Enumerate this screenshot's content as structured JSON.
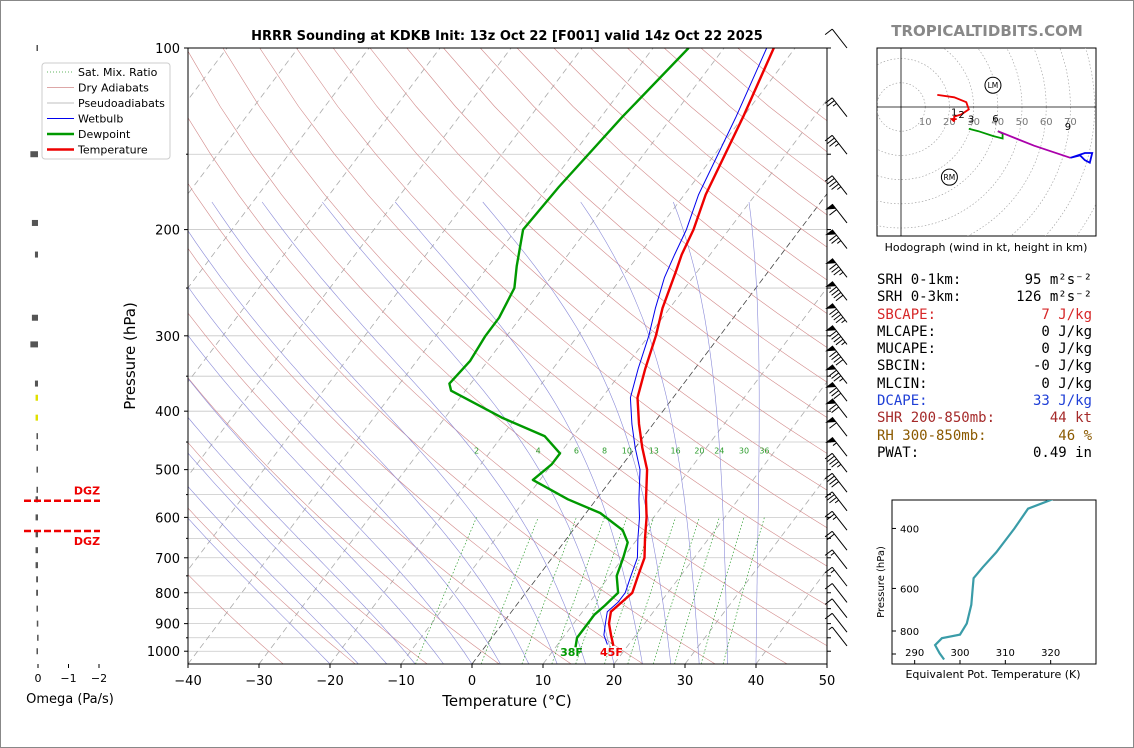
{
  "chart_data": {
    "type": "line",
    "title": "HRRR Sounding at KDKB Init: 13z Oct 22 [F001] valid 14z Oct 22 2025",
    "watermark": "TROPICALTIDBITS.COM",
    "xlabel": "Temperature (°C)",
    "ylabel": "Pressure (hPa)",
    "xlim": [
      -40,
      50
    ],
    "ylim": [
      1050,
      100
    ],
    "xticks": [
      -40,
      -30,
      -20,
      -10,
      0,
      10,
      20,
      30,
      40,
      50
    ],
    "xtick_labels": [
      "−40",
      "−30",
      "−20",
      "−10",
      "0",
      "10",
      "20",
      "30",
      "40",
      "50"
    ],
    "yticks": [
      100,
      200,
      300,
      400,
      500,
      600,
      700,
      800,
      900,
      1000
    ],
    "ytick_labels": [
      "100",
      "200",
      "300",
      "400",
      "500",
      "600",
      "700",
      "800",
      "900",
      "1000"
    ],
    "legend": [
      "Sat. Mix. Ratio",
      "Dry Adiabats",
      "Pseudoadiabats",
      "Wetbulb",
      "Dewpoint",
      "Temperature"
    ],
    "mixing_ratio_labels": [
      "2",
      "4",
      "6",
      "8",
      "10",
      "13",
      "16",
      "20",
      "24",
      "30",
      "36"
    ],
    "surface_labels": {
      "dewpoint": "38F",
      "temperature": "45F"
    },
    "colors": {
      "temperature": "#ee0000",
      "dewpoint": "#009900",
      "wetbulb": "#0000ee",
      "mixing": "#2e9d2e"
    },
    "series": [
      {
        "name": "Temperature",
        "points": [
          [
            -23,
            100
          ],
          [
            -20,
            130
          ],
          [
            -17,
            175
          ],
          [
            -15,
            200
          ],
          [
            -14,
            220
          ],
          [
            -13,
            235
          ],
          [
            -11,
            270
          ],
          [
            -9,
            300
          ],
          [
            -7,
            340
          ],
          [
            -5,
            380
          ],
          [
            -2,
            420
          ],
          [
            1,
            460
          ],
          [
            4,
            500
          ],
          [
            7,
            560
          ],
          [
            9,
            600
          ],
          [
            11,
            650
          ],
          [
            13,
            700
          ],
          [
            14,
            750
          ],
          [
            15,
            800
          ],
          [
            14.5,
            830
          ],
          [
            14,
            860
          ],
          [
            15,
            900
          ],
          [
            16.5,
            940
          ],
          [
            18,
            980
          ]
        ]
      },
      {
        "name": "Dewpoint",
        "points": [
          [
            -35,
            100
          ],
          [
            -37,
            130
          ],
          [
            -38.5,
            170
          ],
          [
            -39,
            200
          ],
          [
            -36,
            230
          ],
          [
            -34,
            250
          ],
          [
            -33,
            280
          ],
          [
            -33,
            300
          ],
          [
            -32.5,
            330
          ],
          [
            -33,
            360
          ],
          [
            -32,
            370
          ],
          [
            -22,
            410
          ],
          [
            -14,
            440
          ],
          [
            -10,
            470
          ],
          [
            -10,
            490
          ],
          [
            -11,
            520
          ],
          [
            -4,
            560
          ],
          [
            2,
            590
          ],
          [
            7,
            630
          ],
          [
            9,
            660
          ],
          [
            10,
            700
          ],
          [
            11,
            750
          ],
          [
            13,
            800
          ],
          [
            12.5,
            840
          ],
          [
            12,
            870
          ],
          [
            12,
            900
          ],
          [
            12,
            950
          ],
          [
            12.8,
            985
          ]
        ]
      },
      {
        "name": "Wetbulb",
        "points": [
          [
            -24,
            100
          ],
          [
            -21,
            130
          ],
          [
            -18,
            175
          ],
          [
            -16,
            200
          ],
          [
            -15,
            220
          ],
          [
            -14,
            240
          ],
          [
            -12,
            270
          ],
          [
            -10,
            300
          ],
          [
            -8,
            340
          ],
          [
            -6,
            380
          ],
          [
            -3,
            420
          ],
          [
            0,
            460
          ],
          [
            3,
            500
          ],
          [
            6,
            560
          ],
          [
            8,
            600
          ],
          [
            10,
            650
          ],
          [
            12,
            700
          ],
          [
            13,
            750
          ],
          [
            14,
            800
          ],
          [
            14,
            830
          ],
          [
            13.5,
            860
          ],
          [
            14.5,
            900
          ],
          [
            15.5,
            940
          ],
          [
            17,
            975
          ]
        ]
      }
    ],
    "wind_barbs": [
      [
        100,
        2,
        10
      ],
      [
        130,
        4,
        25
      ],
      [
        150,
        5,
        35
      ],
      [
        175,
        6,
        45
      ],
      [
        195,
        7,
        60
      ],
      [
        215,
        8,
        75
      ],
      [
        240,
        9,
        85
      ],
      [
        262,
        10,
        90
      ],
      [
        285,
        12,
        95
      ],
      [
        310,
        13,
        95
      ],
      [
        335,
        15,
        90
      ],
      [
        360,
        16,
        85
      ],
      [
        385,
        18,
        80
      ],
      [
        410,
        20,
        70
      ],
      [
        440,
        22,
        60
      ],
      [
        475,
        24,
        55
      ],
      [
        505,
        26,
        45
      ],
      [
        545,
        28,
        40
      ],
      [
        585,
        32,
        35
      ],
      [
        630,
        40,
        25
      ],
      [
        680,
        50,
        20
      ],
      [
        730,
        60,
        18
      ],
      [
        780,
        70,
        16
      ],
      [
        830,
        80,
        14
      ],
      [
        880,
        90,
        12
      ],
      [
        930,
        110,
        10
      ],
      [
        980,
        150,
        8
      ]
    ],
    "omega": {
      "xlabel": "Omega (Pa/s)",
      "ticks": [
        "0",
        "−1",
        "−2"
      ],
      "dgz_label": "DGZ",
      "values": [
        [
          100,
          0.05,
          "#555"
        ],
        [
          150,
          0.25,
          "#555"
        ],
        [
          195,
          0.2,
          "#555"
        ],
        [
          220,
          0.1,
          "#555"
        ],
        [
          280,
          0.2,
          "#555"
        ],
        [
          310,
          0.25,
          "#555"
        ],
        [
          360,
          0.1,
          "#555"
        ],
        [
          380,
          0.08,
          "#e0e000"
        ],
        [
          410,
          0.08,
          "#e0e000"
        ],
        [
          440,
          0.05,
          "#555"
        ],
        [
          460,
          0.05,
          "#555"
        ],
        [
          500,
          0.05,
          "#555"
        ],
        [
          540,
          0.05,
          "#555"
        ],
        [
          560,
          0.08,
          "#555"
        ],
        [
          600,
          0.08,
          "#555"
        ],
        [
          640,
          0.08,
          "#555"
        ],
        [
          680,
          0.08,
          "#555"
        ],
        [
          720,
          0.08,
          "#555"
        ],
        [
          760,
          0.06,
          "#555"
        ],
        [
          800,
          0.06,
          "#555"
        ],
        [
          850,
          0.05,
          "#555"
        ],
        [
          900,
          0.04,
          "#555"
        ],
        [
          950,
          0.03,
          "#555"
        ],
        [
          1000,
          0.05,
          "#555"
        ]
      ]
    },
    "hodograph": {
      "caption": "Hodograph (wind in kt, height in km)",
      "ring_labels": [
        "10",
        "20",
        "30",
        "40",
        "50",
        "60",
        "70"
      ],
      "markers": [
        "LM",
        "RM"
      ],
      "height_labels": [
        "1",
        "2",
        "3",
        "6",
        "9"
      ],
      "segments": [
        {
          "color": "#ee0000",
          "points": [
            [
              15,
              5
            ],
            [
              22,
              4
            ],
            [
              27,
              2
            ],
            [
              28,
              -1
            ],
            [
              25,
              -3
            ],
            [
              22,
              -4
            ],
            [
              22,
              -6
            ]
          ]
        },
        {
          "color": "#ee0000",
          "points": [
            [
              23,
              -5
            ],
            [
              21,
              -5
            ],
            [
              22,
              -6
            ]
          ]
        },
        {
          "color": "#009900",
          "points": [
            [
              28,
              -9
            ],
            [
              32,
              -10
            ],
            [
              38,
              -12
            ],
            [
              42,
              -13
            ],
            [
              42,
              -11
            ],
            [
              40,
              -10
            ]
          ]
        },
        {
          "color": "#aa00aa",
          "points": [
            [
              40,
              -10
            ],
            [
              55,
              -16
            ],
            [
              70,
              -21
            ]
          ]
        },
        {
          "color": "#0000ee",
          "points": [
            [
              70,
              -21
            ],
            [
              76,
              -19
            ],
            [
              79,
              -19
            ],
            [
              78,
              -23
            ],
            [
              76,
              -22
            ],
            [
              74,
              -20
            ],
            [
              70,
              -21
            ]
          ]
        }
      ]
    },
    "theta_e": {
      "ylabel": "Pressure (hPa)",
      "xlabel": "Equivalent Pot. Temperature (K)",
      "xticks": [
        "290",
        "300",
        "310",
        "320"
      ],
      "yticks": [
        "400",
        "600",
        "800"
      ],
      "points": [
        [
          327,
          300
        ],
        [
          320,
          330
        ],
        [
          315,
          350
        ],
        [
          312,
          400
        ],
        [
          308,
          470
        ],
        [
          305,
          520
        ],
        [
          303,
          560
        ],
        [
          302.8,
          600
        ],
        [
          302.5,
          670
        ],
        [
          301.5,
          760
        ],
        [
          300,
          820
        ],
        [
          296,
          840
        ],
        [
          294.5,
          880
        ],
        [
          295.5,
          930
        ],
        [
          296.5,
          970
        ]
      ]
    },
    "stats": [
      {
        "label": "SRH 0-1km:",
        "value": "95",
        "unit": "m²s⁻²",
        "color": "#000"
      },
      {
        "label": "SRH 0-3km:",
        "value": "126",
        "unit": "m²s⁻²",
        "color": "#000"
      },
      {
        "label": "SBCAPE:",
        "value": "7 J/kg",
        "unit": "",
        "color": "#d62728"
      },
      {
        "label": "MLCAPE:",
        "value": "0 J/kg",
        "unit": "",
        "color": "#000"
      },
      {
        "label": "MUCAPE:",
        "value": "0 J/kg",
        "unit": "",
        "color": "#000"
      },
      {
        "label": "SBCIN:",
        "value": "-0 J/kg",
        "unit": "",
        "color": "#000"
      },
      {
        "label": "MLCIN:",
        "value": "0 J/kg",
        "unit": "",
        "color": "#000"
      },
      {
        "label": "DCAPE:",
        "value": "33 J/kg",
        "unit": "",
        "color": "#1f3fd6"
      },
      {
        "label": "SHR 200-850mb:",
        "value": "44 kt",
        "unit": "",
        "color": "#a52a2a"
      },
      {
        "label": "RH 300-850mb:",
        "value": "46 %",
        "unit": "",
        "color": "#8b5a00"
      },
      {
        "label": "PWAT:",
        "value": "0.49 in",
        "unit": "",
        "color": "#000"
      }
    ]
  }
}
